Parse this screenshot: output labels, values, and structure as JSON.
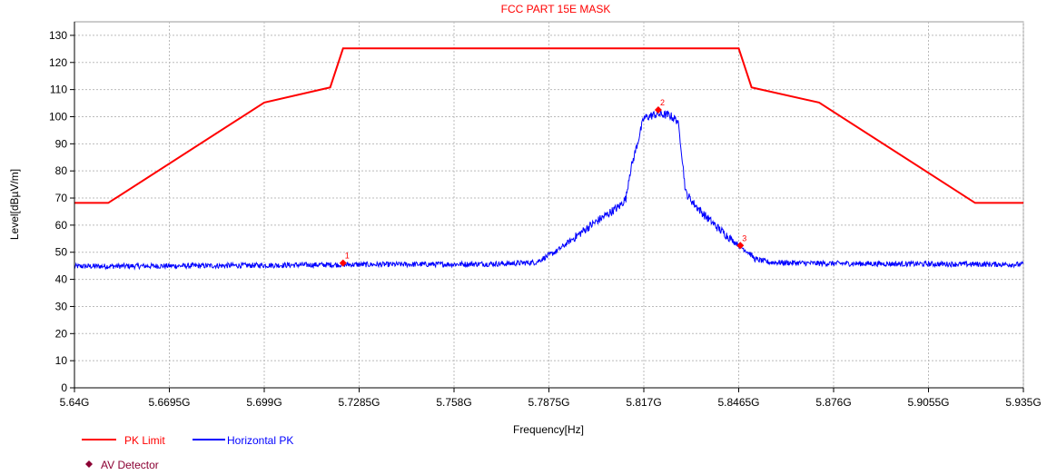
{
  "chart_data": {
    "type": "line",
    "title": "FCC PART 15E MASK",
    "xlabel": "Frequency[Hz]",
    "ylabel": "Level[dBµV/m]",
    "xlim": [
      5.64,
      5.935
    ],
    "ylim": [
      0,
      135
    ],
    "x_ticks": [
      5.64,
      5.6695,
      5.699,
      5.7285,
      5.758,
      5.7875,
      5.817,
      5.8465,
      5.876,
      5.9055,
      5.935
    ],
    "x_tick_labels": [
      "5.64G",
      "5.6695G",
      "5.699G",
      "5.7285G",
      "5.758G",
      "5.7875G",
      "5.817G",
      "5.8465G",
      "5.876G",
      "5.9055G",
      "5.935G"
    ],
    "y_ticks": [
      0,
      10,
      20,
      30,
      40,
      50,
      60,
      70,
      80,
      90,
      100,
      110,
      120,
      130
    ],
    "y_tick_labels": [
      "0",
      "10",
      "20",
      "30",
      "40",
      "50",
      "60",
      "70",
      "80",
      "90",
      "100",
      "110",
      "120",
      "130"
    ],
    "grid": true,
    "legend_position": "bottom-left",
    "series": [
      {
        "name": "PK Limit",
        "color": "#ff0000",
        "x": [
          5.64,
          5.6505,
          5.699,
          5.7195,
          5.7235,
          5.8465,
          5.8505,
          5.8715,
          5.92,
          5.935
        ],
        "y": [
          68.2,
          68.2,
          105.2,
          110.8,
          125.2,
          125.2,
          110.8,
          105.2,
          68.2,
          68.2
        ]
      },
      {
        "name": "Horizontal PK",
        "color": "#0000ff",
        "x": [
          5.64,
          5.66,
          5.68,
          5.7,
          5.72,
          5.74,
          5.76,
          5.775,
          5.7835,
          5.79,
          5.795,
          5.8,
          5.805,
          5.8095,
          5.8115,
          5.8125,
          5.817,
          5.821,
          5.825,
          5.8275,
          5.8285,
          5.83,
          5.8325,
          5.836,
          5.84,
          5.845,
          5.85,
          5.8515,
          5.856,
          5.87,
          5.9,
          5.935
        ],
        "y": [
          44.8,
          44.9,
          45.0,
          45.2,
          45.4,
          45.5,
          45.6,
          45.8,
          46.3,
          50.5,
          55.0,
          59.5,
          63.5,
          67.0,
          70.0,
          78.5,
          99.5,
          101.0,
          100.5,
          98.5,
          90.0,
          72.0,
          68.0,
          63.5,
          59.0,
          54.0,
          49.5,
          47.5,
          46.3,
          45.9,
          45.7,
          45.5
        ]
      }
    ],
    "markers": {
      "name": "AV Detector",
      "color": "#8b0033",
      "points": [
        {
          "label": "1",
          "x": 5.7235,
          "y": 46.0
        },
        {
          "label": "2",
          "x": 5.8215,
          "y": 102.5
        },
        {
          "label": "3",
          "x": 5.847,
          "y": 52.5
        }
      ]
    }
  }
}
